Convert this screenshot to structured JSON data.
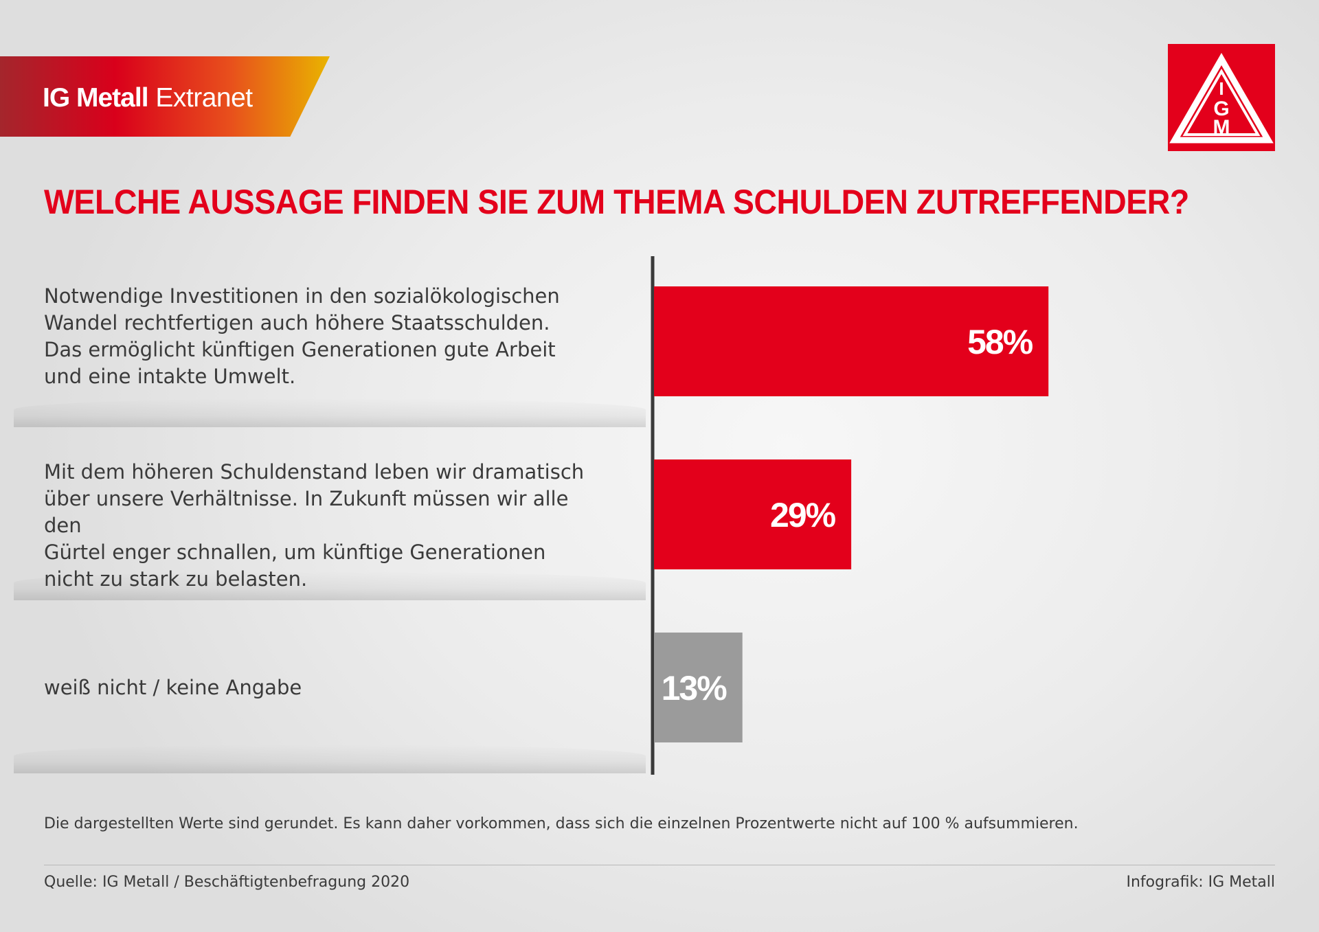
{
  "header": {
    "brand_bold": "IG Metall",
    "brand_light": "Extranet",
    "logo_letters": [
      "I",
      "G",
      "M"
    ]
  },
  "colors": {
    "accent_red": "#e3001b",
    "neutral_gray": "#9b9b9b"
  },
  "chart_data": {
    "type": "bar",
    "orientation": "horizontal",
    "title": "WELCHE AUSSAGE FINDEN SIE ZUM THEMA SCHULDEN ZUTREFFENDER?",
    "categories": [
      "Notwendige Investitionen in den sozialökologischen\nWandel rechtfertigen auch höhere Staatsschulden.\nDas ermöglicht künftigen Generationen gute Arbeit\nund eine intakte Umwelt.",
      "Mit dem höheren Schuldenstand leben wir dramatisch\nüber unsere Verhältnisse. In Zukunft müssen wir alle den\nGürtel enger schnallen, um künftige Generationen\nnicht zu stark zu belasten.",
      "weiß nicht / keine Angabe"
    ],
    "values": [
      58,
      29,
      13
    ],
    "value_labels": [
      "58%",
      "29%",
      "13%"
    ],
    "bar_colors": [
      "#e3001b",
      "#e3001b",
      "#9b9b9b"
    ],
    "xlim": [
      0,
      100
    ],
    "grid": false,
    "legend": "none"
  },
  "footer": {
    "note": "Die dargestellten Werte sind gerundet. Es kann daher vorkommen, dass sich die einzelnen Prozentwerte nicht auf 100 % aufsummieren.",
    "source": "Quelle: IG Metall / Beschäftigtenbefragung 2020",
    "credit": "Infografik: IG Metall"
  }
}
